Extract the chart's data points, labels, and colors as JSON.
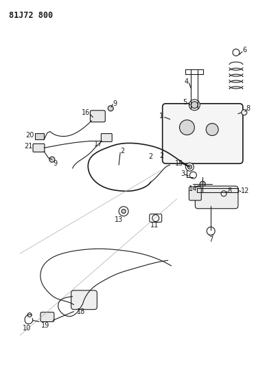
{
  "title": "81J72 800",
  "bg": "#ffffff",
  "lc": "#1a1a1a",
  "title_fontsize": 8.5,
  "lfs": 7,
  "fig_w": 3.89,
  "fig_h": 5.33,
  "dpi": 100
}
